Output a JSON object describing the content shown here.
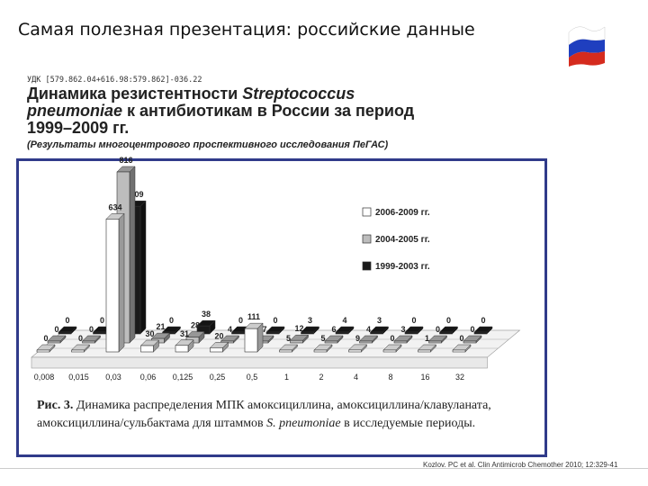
{
  "slide": {
    "title": "Самая полезная презентация: российские данные",
    "udc": "УДК [579.862.04+616.98:579.862]-036.22",
    "article_title_1": "Динамика резистентности ",
    "article_title_italic": "Streptococcus pneumoniae",
    "article_title_2": " к антибиотикам в России за период 1999–2009 гг.",
    "article_subtitle": "(Результаты многоцентрового проспективного исследования ПеГАС)",
    "caption_bold": "Рис. 3.",
    "caption_text": " Динамика распределения МПК амоксициллина, амоксициллина/клавуланата, амоксициллина/сульбактама для штаммов ",
    "caption_italic": "S. pneumoniae",
    "caption_end": " в исследуемые периоды.",
    "reference": "Kozlov. PC et al. Clin Antimicrob Chemother 2010; 12:329-41",
    "flag_colors": [
      "#ffffff",
      "#1f3fbf",
      "#d52b1e"
    ]
  },
  "chart_data": {
    "type": "bar",
    "style": "3d",
    "categories": [
      "0,008",
      "0,015",
      "0,03",
      "0,06",
      "0,125",
      "0,25",
      "0,5",
      "1",
      "2",
      "4",
      "8",
      "16",
      "32"
    ],
    "series": [
      {
        "name": "2006-2009 гг.",
        "color": "#ffffff",
        "values": [
          0,
          0,
          634,
          30,
          31,
          20,
          111,
          5,
          5,
          9,
          0,
          1,
          0
        ]
      },
      {
        "name": "2004-2005 гг.",
        "color": "#bdbdbd",
        "values": [
          0,
          0,
          816,
          21,
          28,
          4,
          7,
          12,
          6,
          4,
          3,
          0,
          0
        ]
      },
      {
        "name": "1999-2003 гг.",
        "color": "#1a1a1a",
        "values": [
          0,
          0,
          609,
          0,
          38,
          0,
          0,
          3,
          4,
          3,
          0,
          0,
          0
        ]
      }
    ],
    "ymax": 816,
    "legend_position": "right"
  }
}
